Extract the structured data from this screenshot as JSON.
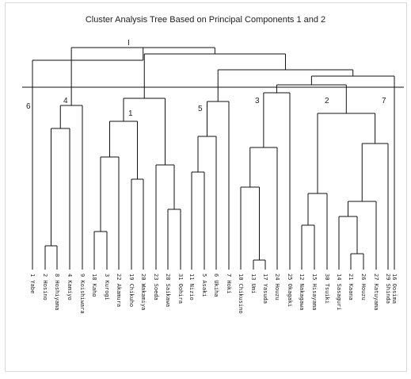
{
  "title": "Cluster Analysis Tree Based on Principal Components 1 and 2",
  "leaves": [
    "1 Yabe",
    "2 Hosino",
    "8 Hoshiyama",
    "4 Kamiyo",
    "9 Koishiwara",
    "18 Kaho",
    "3 Kurogi",
    "22 Akamura",
    "19 Chikuho",
    "20 Wakamiya",
    "23 Soeda",
    "28 Saikawa",
    "31 Oohira",
    "11 Nizio",
    "5 Asaki",
    "6 Ukiha",
    "7 Hoki",
    "10 Chikusino",
    "13 Umi",
    "17 Yasuda",
    "24 Houzu",
    "25 Okagaki",
    "12 Nakagawa",
    "15 Hisayama",
    "30 Tsuiki",
    "14 Sasaguri",
    "21 Kaana",
    "26 Houzu",
    "27 Katuyama",
    "29 Shinda",
    "16 Oosima"
  ],
  "top_cluster_label": "I",
  "cluster_labels": [
    "6",
    "4",
    "1",
    "5",
    "3",
    "2",
    "7"
  ]
}
